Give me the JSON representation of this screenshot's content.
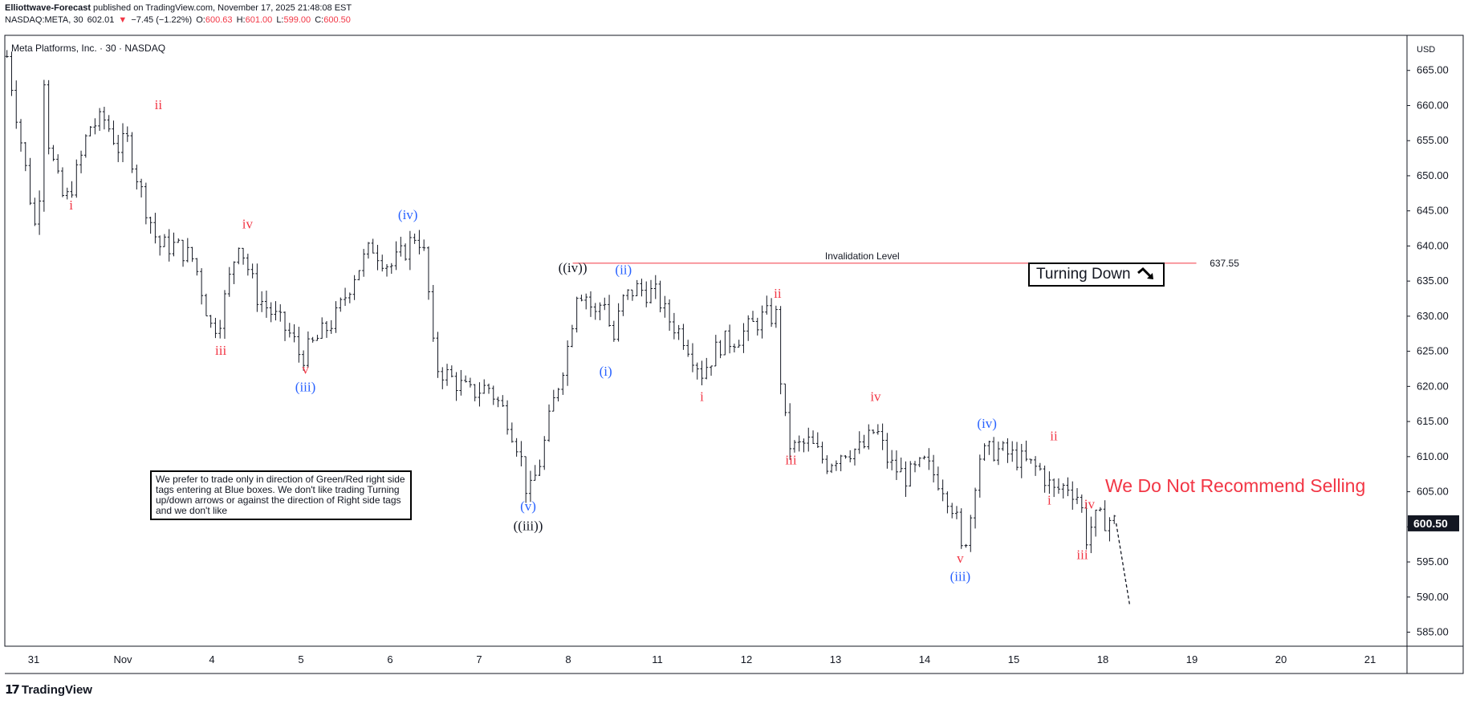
{
  "header": {
    "publisher": "Elliottwave-Forecast",
    "published_text": "published on TradingView.com, November 17, 2025 21:48:08 EST",
    "symbol": "NASDAQ:META, 30",
    "last": "602.01",
    "change": "−7.45 (−1.22%)",
    "o_label": "O:",
    "o_val": "600.63",
    "h_label": "H:",
    "h_val": "601.00",
    "l_label": "L:",
    "l_val": "599.00",
    "c_label": "C:",
    "c_val": "600.50"
  },
  "chart_title": "Meta Platforms, Inc. · 30 · NASDAQ",
  "currency": "USD",
  "footer_brand": "TradingView",
  "note_text": "We prefer to trade only in direction of Green/Red right side tags entering at Blue boxes. We don't like trading Turning up/down arrows or against the direction of Right side tags and we don't like",
  "turning_label": "Turning Down",
  "no_sell_label": "We Do Not Recommend Selling",
  "colors": {
    "red": "#f23645",
    "blue": "#2962ff",
    "black": "#131722",
    "bar": "#131722"
  },
  "chart_data": {
    "type": "ohlc",
    "title": "Meta Platforms, Inc. · 30 · NASDAQ",
    "ylim": [
      583,
      670
    ],
    "y_ticks": [
      585,
      590,
      595,
      600,
      605,
      610,
      615,
      620,
      625,
      630,
      635,
      640,
      645,
      650,
      655,
      660,
      665
    ],
    "y_tick_labels": [
      "585.00",
      "590.00",
      "595.00",
      "600.00",
      "605.00",
      "610.00",
      "615.00",
      "620.00",
      "625.00",
      "630.00",
      "635.00",
      "640.00",
      "645.00",
      "650.00",
      "655.00",
      "660.00",
      "665.00"
    ],
    "x_range": [
      -0.1,
      15.7
    ],
    "x_ticks": [
      {
        "x": 0,
        "label": "31"
      },
      {
        "x": 1,
        "label": "Nov"
      },
      {
        "x": 2,
        "label": "4"
      },
      {
        "x": 3,
        "label": "5"
      },
      {
        "x": 4,
        "label": "6"
      },
      {
        "x": 5,
        "label": "7"
      },
      {
        "x": 6,
        "label": "8"
      },
      {
        "x": 7,
        "label": "11"
      },
      {
        "x": 8,
        "label": "12"
      },
      {
        "x": 9,
        "label": "13"
      },
      {
        "x": 10,
        "label": "14"
      },
      {
        "x": 11,
        "label": "15"
      },
      {
        "x": 12,
        "label": "18"
      },
      {
        "x": 13,
        "label": "19"
      },
      {
        "x": 14,
        "label": "20"
      },
      {
        "x": 15,
        "label": "21"
      }
    ],
    "price_path": [
      [
        -0.3,
        667
      ],
      [
        0.05,
        640
      ],
      [
        0.1,
        668
      ],
      [
        0.15,
        656
      ],
      [
        0.25,
        650
      ],
      [
        0.35,
        646
      ],
      [
        0.5,
        651
      ],
      [
        0.62,
        657
      ],
      [
        0.8,
        658
      ],
      [
        0.95,
        654
      ],
      [
        1.05,
        655
      ],
      [
        1.2,
        648
      ],
      [
        1.4,
        640
      ],
      [
        1.6,
        640
      ],
      [
        1.8,
        638
      ],
      [
        2.0,
        628
      ],
      [
        2.1,
        630
      ],
      [
        2.3,
        641
      ],
      [
        2.5,
        633
      ],
      [
        2.7,
        630
      ],
      [
        2.9,
        627
      ],
      [
        3.0,
        624
      ],
      [
        3.2,
        627
      ],
      [
        3.4,
        630
      ],
      [
        3.6,
        636
      ],
      [
        3.8,
        640
      ],
      [
        4.0,
        637
      ],
      [
        4.15,
        639
      ],
      [
        4.3,
        642
      ],
      [
        4.4,
        638
      ],
      [
        4.5,
        623
      ],
      [
        4.7,
        621
      ],
      [
        4.9,
        619
      ],
      [
        5.1,
        620
      ],
      [
        5.3,
        616
      ],
      [
        5.45,
        611
      ],
      [
        5.55,
        604
      ],
      [
        5.7,
        610
      ],
      [
        5.8,
        616
      ],
      [
        5.9,
        621
      ],
      [
        6.0,
        626
      ],
      [
        6.1,
        634
      ],
      [
        6.2,
        633
      ],
      [
        6.3,
        630
      ],
      [
        6.4,
        633
      ],
      [
        6.5,
        626
      ],
      [
        6.6,
        632
      ],
      [
        6.75,
        634
      ],
      [
        7.0,
        633
      ],
      [
        7.1,
        630
      ],
      [
        7.3,
        627
      ],
      [
        7.5,
        622
      ],
      [
        7.7,
        626
      ],
      [
        7.9,
        627
      ],
      [
        8.0,
        628
      ],
      [
        8.2,
        630
      ],
      [
        8.35,
        630
      ],
      [
        8.4,
        617
      ],
      [
        8.5,
        611
      ],
      [
        8.7,
        612
      ],
      [
        8.9,
        609
      ],
      [
        9.1,
        611
      ],
      [
        9.3,
        611
      ],
      [
        9.45,
        614
      ],
      [
        9.6,
        609
      ],
      [
        9.8,
        607
      ],
      [
        10.0,
        609
      ],
      [
        10.2,
        606
      ],
      [
        10.35,
        602
      ],
      [
        10.4,
        596
      ],
      [
        10.5,
        600
      ],
      [
        10.6,
        610
      ],
      [
        10.8,
        611
      ],
      [
        11.0,
        610
      ],
      [
        11.15,
        609
      ],
      [
        11.3,
        608
      ],
      [
        11.45,
        605
      ],
      [
        11.6,
        606
      ],
      [
        11.75,
        604
      ],
      [
        11.8,
        598
      ],
      [
        11.9,
        601
      ],
      [
        12.1,
        601
      ],
      [
        12.15,
        600.5
      ]
    ],
    "invalidation_level": {
      "value": 637.55,
      "label": "Invalidation Level",
      "price_label": "637.55"
    },
    "last_price": {
      "value": 600.5,
      "label": "600.50"
    },
    "wave_labels": [
      {
        "text": "i",
        "color": "red",
        "x": 0.42,
        "y": 645.2
      },
      {
        "text": "ii",
        "color": "red",
        "x": 1.4,
        "y": 659.5
      },
      {
        "text": "iii",
        "color": "red",
        "x": 2.1,
        "y": 624.5
      },
      {
        "text": "iv",
        "color": "red",
        "x": 2.4,
        "y": 642.5
      },
      {
        "text": "v",
        "color": "red",
        "x": 3.05,
        "y": 621.8
      },
      {
        "text": "(iii)",
        "color": "blue",
        "x": 3.05,
        "y": 619.3
      },
      {
        "text": "(iv)",
        "color": "blue",
        "x": 4.2,
        "y": 643.8
      },
      {
        "text": "(v)",
        "color": "blue",
        "x": 5.55,
        "y": 602.3
      },
      {
        "text": "((iii))",
        "color": "black",
        "x": 5.55,
        "y": 599.5
      },
      {
        "text": "((iv))",
        "color": "black",
        "x": 6.05,
        "y": 636.3
      },
      {
        "text": "(ii)",
        "color": "blue",
        "x": 6.62,
        "y": 636.0
      },
      {
        "text": "(i)",
        "color": "blue",
        "x": 6.42,
        "y": 621.5
      },
      {
        "text": "i",
        "color": "red",
        "x": 7.5,
        "y": 617.9
      },
      {
        "text": "ii",
        "color": "red",
        "x": 8.35,
        "y": 632.6
      },
      {
        "text": "iii",
        "color": "red",
        "x": 8.5,
        "y": 608.9
      },
      {
        "text": "iv",
        "color": "red",
        "x": 9.45,
        "y": 617.9
      },
      {
        "text": "(iv)",
        "color": "blue",
        "x": 10.7,
        "y": 614.1
      },
      {
        "text": "v",
        "color": "red",
        "x": 10.4,
        "y": 594.9
      },
      {
        "text": "(iii)",
        "color": "blue",
        "x": 10.4,
        "y": 592.3
      },
      {
        "text": "ii",
        "color": "red",
        "x": 11.45,
        "y": 612.3
      },
      {
        "text": "i",
        "color": "red",
        "x": 11.4,
        "y": 603.2
      },
      {
        "text": "iv",
        "color": "red",
        "x": 11.85,
        "y": 602.6
      },
      {
        "text": "iii",
        "color": "red",
        "x": 11.77,
        "y": 595.4
      }
    ],
    "projection": [
      [
        12.15,
        600.5
      ],
      [
        12.3,
        589
      ]
    ]
  }
}
